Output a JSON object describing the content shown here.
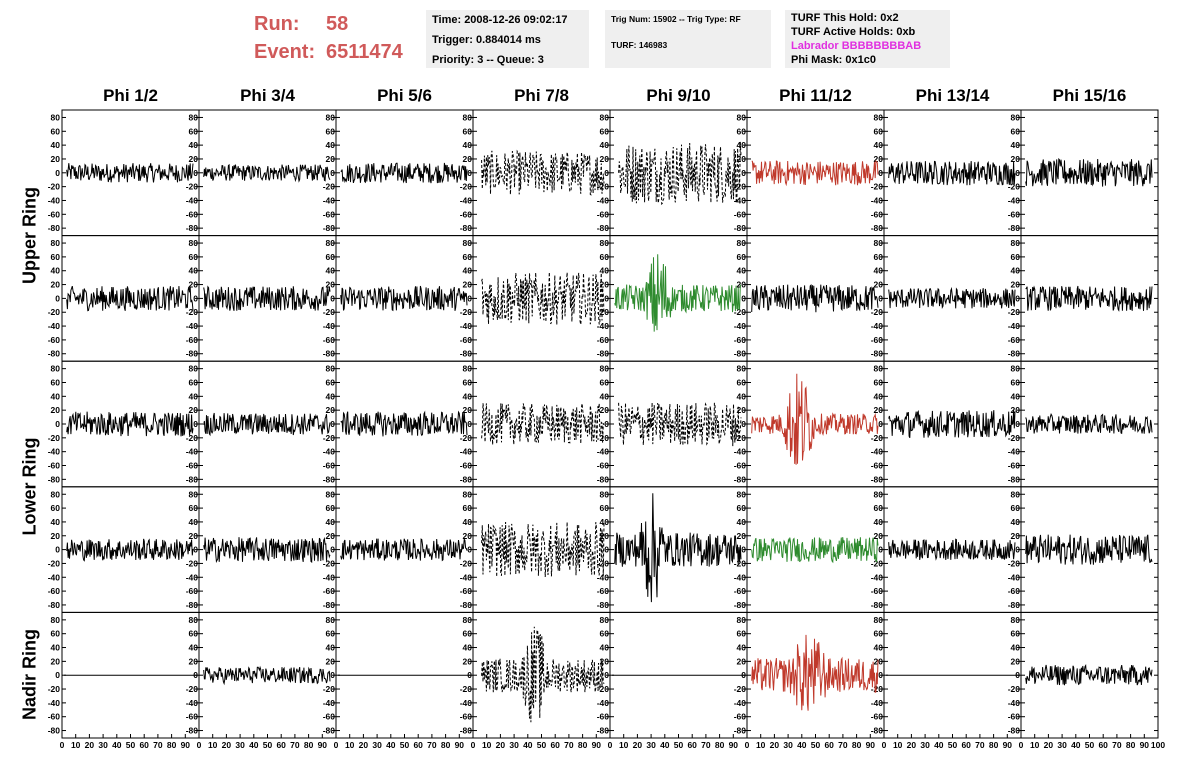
{
  "header": {
    "run_label": "Run:",
    "run_value": "58",
    "event_label": "Event:",
    "event_value": "6511474",
    "time": "Time: 2008-12-26 09:02:17",
    "trigger": "Trigger: 0.884014 ms",
    "priority": "Priority: 3 -- Queue: 3",
    "trig_num": "Trig Num: 15902 -- Trig Type: RF",
    "turf": "TURF: 146983",
    "turf_this_hold": "TURF This Hold: 0x2",
    "turf_active_holds": "TURF Active Holds: 0xb",
    "labrador": "Labrador BBBBBBBBAB",
    "phi_mask": "Phi Mask: 0x1c0"
  },
  "columns": [
    "Phi 1/2",
    "Phi 3/4",
    "Phi 5/6",
    "Phi 7/8",
    "Phi 9/10",
    "Phi 11/12",
    "Phi 13/14",
    "Phi 15/16"
  ],
  "rows": [
    "Upper Ring",
    "Lower Ring",
    "Nadir Ring"
  ],
  "colors": {
    "run_text": "#d05a5a",
    "labrador": "#e030e0",
    "red_trace": "#c0392b",
    "green_trace": "#2e8b2e",
    "trace": "#000000"
  },
  "chart_data": {
    "type": "line",
    "xlim": [
      0,
      100
    ],
    "ylim": [
      -85,
      85
    ],
    "x_ticks": [
      "0",
      "10",
      "20",
      "30",
      "40",
      "50",
      "60",
      "70",
      "80",
      "90",
      "100"
    ],
    "y_ticks": [
      "80",
      "60",
      "40",
      "20",
      "0",
      "-20",
      "-40",
      "-60",
      "-80"
    ],
    "grid": false,
    "panels": [
      [
        {
          "style": "solid",
          "color": "black",
          "amp": 14
        },
        {
          "style": "solid",
          "color": "black",
          "amp": 12
        },
        {
          "style": "solid",
          "color": "black",
          "amp": 15
        },
        {
          "style": "dashed",
          "color": "black",
          "amp": 32
        },
        {
          "style": "dashed",
          "color": "black",
          "amp": 45
        },
        {
          "style": "solid",
          "color": "red",
          "amp": 18
        },
        {
          "style": "solid",
          "color": "black",
          "amp": 18
        },
        {
          "style": "solid",
          "color": "black",
          "amp": 20
        }
      ],
      [
        {
          "style": "solid",
          "color": "black",
          "amp": 18
        },
        {
          "style": "solid",
          "color": "black",
          "amp": 18
        },
        {
          "style": "solid",
          "color": "black",
          "amp": 18
        },
        {
          "style": "dashed",
          "color": "black",
          "amp": 38
        },
        {
          "style": "solid",
          "color": "green",
          "amp": 20,
          "burst": [
            25,
            45,
            60
          ]
        },
        {
          "style": "solid",
          "color": "black",
          "amp": 20
        },
        {
          "style": "solid",
          "color": "black",
          "amp": 15
        },
        {
          "style": "solid",
          "color": "black",
          "amp": 18
        }
      ],
      [
        {
          "style": "solid",
          "color": "black",
          "amp": 18
        },
        {
          "style": "solid",
          "color": "black",
          "amp": 16
        },
        {
          "style": "solid",
          "color": "black",
          "amp": 18
        },
        {
          "style": "dashed",
          "color": "black",
          "amp": 30
        },
        {
          "style": "dashed",
          "color": "black",
          "amp": 32
        },
        {
          "style": "solid",
          "color": "red",
          "amp": 15,
          "burst": [
            25,
            50,
            70
          ]
        },
        {
          "style": "solid",
          "color": "black",
          "amp": 20
        },
        {
          "style": "solid",
          "color": "black",
          "amp": 14
        }
      ],
      [
        {
          "style": "solid",
          "color": "black",
          "amp": 16
        },
        {
          "style": "solid",
          "color": "black",
          "amp": 18
        },
        {
          "style": "solid",
          "color": "black",
          "amp": 16
        },
        {
          "style": "dashed",
          "color": "black",
          "amp": 40
        },
        {
          "style": "solid",
          "color": "black",
          "amp": 25,
          "burst": [
            20,
            40,
            65
          ]
        },
        {
          "style": "solid",
          "color": "green",
          "amp": 18
        },
        {
          "style": "solid",
          "color": "black",
          "amp": 15
        },
        {
          "style": "solid",
          "color": "black",
          "amp": 22
        }
      ],
      [
        {
          "style": "flat",
          "color": "black",
          "amp": 0
        },
        {
          "style": "solid",
          "color": "black",
          "amp": 12
        },
        {
          "style": "flat",
          "color": "black",
          "amp": 0
        },
        {
          "style": "dashed",
          "color": "black",
          "amp": 25,
          "burst": [
            35,
            55,
            55
          ]
        },
        {
          "style": "flat",
          "color": "black",
          "amp": 0
        },
        {
          "style": "solid",
          "color": "red",
          "amp": 25,
          "burst": [
            30,
            60,
            40
          ]
        },
        {
          "style": "flat",
          "color": "black",
          "amp": 0
        },
        {
          "style": "solid",
          "color": "black",
          "amp": 15
        }
      ]
    ]
  }
}
